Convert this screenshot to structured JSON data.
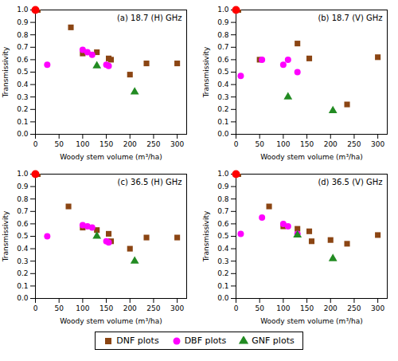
{
  "chart_data": [
    {
      "type": "scatter",
      "title": "(a) 18.7 (H) GHz",
      "xlabel": "Woody stem volume (m³/ha)",
      "ylabel": "Transmissivity",
      "xlim": [
        0,
        320
      ],
      "ylim": [
        0.0,
        1.0
      ],
      "xticks": [
        0,
        50,
        100,
        150,
        200,
        250,
        300
      ],
      "yticks": [
        {
          "value": 0.0,
          "label": "0.0"
        },
        0.1,
        0.2,
        0.3,
        0.4,
        0.5,
        0.6,
        0.7,
        0.8,
        0.9,
        {
          "value": 1.0,
          "label": "1.0"
        }
      ],
      "grid": false,
      "legend": "bottom",
      "series": [
        {
          "name": "DNF plots",
          "color": "#8B4513",
          "marker": "square",
          "x": [
            5,
            75,
            100,
            130,
            155,
            160,
            200,
            235,
            300
          ],
          "values": [
            1.0,
            0.86,
            0.65,
            0.66,
            0.61,
            0.6,
            0.48,
            0.57,
            0.57
          ]
        },
        {
          "name": "DBF plots",
          "color": "#FF00FF",
          "marker": "circle",
          "x": [
            25,
            100,
            110,
            120,
            150,
            155
          ],
          "values": [
            0.56,
            0.68,
            0.66,
            0.64,
            0.56,
            0.55
          ]
        },
        {
          "name": "GNF plots",
          "color": "#228B22",
          "marker": "triangle",
          "x": [
            130,
            210
          ],
          "values": [
            0.55,
            0.34
          ]
        },
        {
          "color": "#FF0000",
          "marker": "circle",
          "x": [
            0
          ],
          "values": [
            1.0
          ]
        }
      ]
    },
    {
      "type": "scatter",
      "title": "(b) 18.7 (V) GHz",
      "xlabel": "Woody stem volume (m³/ha)",
      "ylabel": "Transmissivity",
      "xlim": [
        0,
        320
      ],
      "ylim": [
        0.0,
        1.0
      ],
      "xticks": [
        0,
        50,
        100,
        150,
        200,
        250,
        300
      ],
      "yticks": [
        {
          "value": 0.0,
          "label": "0.0"
        },
        0.1,
        0.2,
        0.3,
        0.4,
        0.5,
        0.6,
        0.7,
        0.8,
        0.9,
        {
          "value": 1.0,
          "label": "1.0"
        }
      ],
      "grid": false,
      "legend": "bottom",
      "series": [
        {
          "name": "DNF plots",
          "color": "#8B4513",
          "marker": "square",
          "x": [
            5,
            50,
            130,
            155,
            235,
            300
          ],
          "values": [
            1.0,
            0.6,
            0.73,
            0.61,
            0.24,
            0.62
          ]
        },
        {
          "name": "DBF plots",
          "color": "#FF00FF",
          "marker": "circle",
          "x": [
            10,
            55,
            100,
            110,
            130
          ],
          "values": [
            0.47,
            0.6,
            0.56,
            0.6,
            0.5
          ]
        },
        {
          "name": "GNF plots",
          "color": "#228B22",
          "marker": "triangle",
          "x": [
            110,
            205
          ],
          "values": [
            0.3,
            0.19
          ]
        },
        {
          "color": "#FF0000",
          "marker": "circle",
          "x": [
            0
          ],
          "values": [
            1.0
          ]
        }
      ]
    },
    {
      "type": "scatter",
      "title": "(c) 36.5 (H) GHz",
      "xlabel": "Woody stem volume (m³/ha)",
      "ylabel": "Transmissivity",
      "xlim": [
        0,
        320
      ],
      "ylim": [
        0.0,
        1.0
      ],
      "xticks": [
        0,
        50,
        100,
        150,
        200,
        250,
        300
      ],
      "yticks": [
        {
          "value": 0.0,
          "label": "0.0"
        },
        0.1,
        0.2,
        0.3,
        0.4,
        0.5,
        0.6,
        0.7,
        0.8,
        0.9,
        {
          "value": 1.0,
          "label": "1.0"
        }
      ],
      "grid": false,
      "legend": "bottom",
      "series": [
        {
          "name": "DNF plots",
          "color": "#8B4513",
          "marker": "square",
          "x": [
            5,
            70,
            100,
            130,
            155,
            160,
            200,
            235,
            300
          ],
          "values": [
            1.0,
            0.74,
            0.57,
            0.55,
            0.52,
            0.46,
            0.4,
            0.49,
            0.49
          ]
        },
        {
          "name": "DBF plots",
          "color": "#FF00FF",
          "marker": "circle",
          "x": [
            25,
            100,
            110,
            120,
            150,
            155
          ],
          "values": [
            0.5,
            0.59,
            0.58,
            0.57,
            0.46,
            0.45
          ]
        },
        {
          "name": "GNF plots",
          "color": "#228B22",
          "marker": "triangle",
          "x": [
            130,
            210
          ],
          "values": [
            0.5,
            0.3
          ]
        },
        {
          "color": "#FF0000",
          "marker": "circle",
          "x": [
            0
          ],
          "values": [
            1.0
          ]
        }
      ]
    },
    {
      "type": "scatter",
      "title": "(d) 36.5 (V) GHz",
      "xlabel": "Woody stem volume (m³/ha)",
      "ylabel": "Transmissivity",
      "xlim": [
        0,
        320
      ],
      "ylim": [
        0.0,
        1.0
      ],
      "xticks": [
        0,
        50,
        100,
        150,
        200,
        250,
        300
      ],
      "yticks": [
        {
          "value": 0.0,
          "label": "0.0"
        },
        0.1,
        0.2,
        0.3,
        0.4,
        0.5,
        0.6,
        0.7,
        0.8,
        0.9,
        {
          "value": 1.0,
          "label": "1.0"
        }
      ],
      "grid": false,
      "legend": "bottom",
      "series": [
        {
          "name": "DNF plots",
          "color": "#8B4513",
          "marker": "square",
          "x": [
            5,
            70,
            100,
            130,
            155,
            160,
            200,
            235,
            300
          ],
          "values": [
            1.0,
            0.74,
            0.58,
            0.56,
            0.54,
            0.46,
            0.47,
            0.44,
            0.51
          ]
        },
        {
          "name": "DBF plots",
          "color": "#FF00FF",
          "marker": "circle",
          "x": [
            10,
            55,
            100,
            110,
            130
          ],
          "values": [
            0.52,
            0.65,
            0.6,
            0.58,
            0.52
          ]
        },
        {
          "name": "GNF plots",
          "color": "#228B22",
          "marker": "triangle",
          "x": [
            130,
            205
          ],
          "values": [
            0.51,
            0.32
          ]
        },
        {
          "color": "#FF0000",
          "marker": "circle",
          "x": [
            0
          ],
          "values": [
            1.0
          ]
        }
      ]
    }
  ]
}
